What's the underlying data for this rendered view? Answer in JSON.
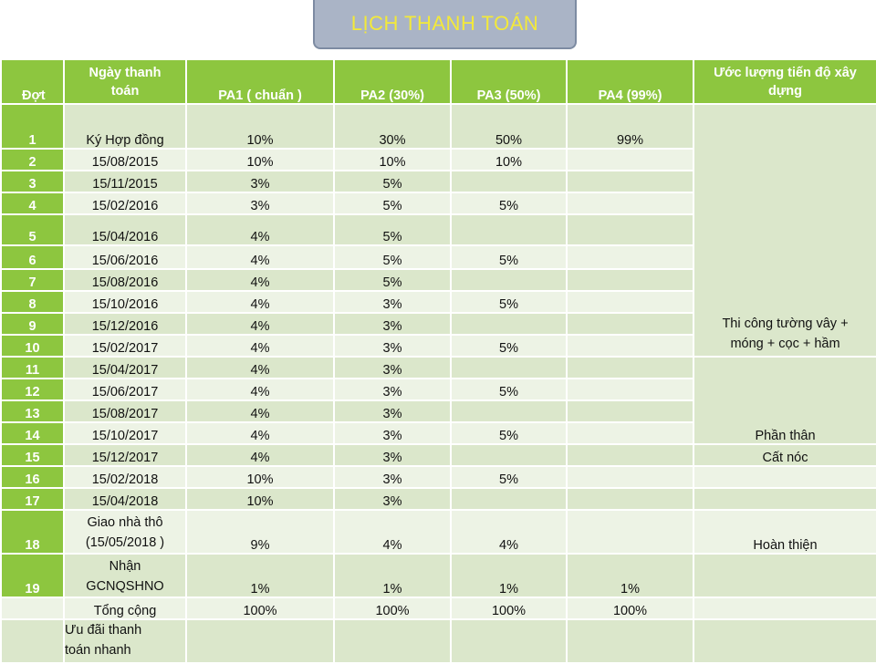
{
  "title": "LỊCH THANH TOÁN",
  "columns": {
    "dot": "Đợt",
    "date_line1": "Ngày thanh",
    "date_line2": "toán",
    "pa1": "PA1 ( chuẩn )",
    "pa2": "PA2 (30%)",
    "pa3": "PA3 (50%)",
    "pa4": "PA4 (99%)",
    "est_line1": "Ước lượng tiến độ xây",
    "est_line2": "dựng"
  },
  "rows": [
    {
      "dot": "1",
      "date": "Ký Hợp đồng",
      "pa1": "10%",
      "pa2": "30%",
      "pa3": "50%",
      "pa4": "99%"
    },
    {
      "dot": "2",
      "date": "15/08/2015",
      "pa1": "10%",
      "pa2": "10%",
      "pa3": "10%",
      "pa4": ""
    },
    {
      "dot": "3",
      "date": "15/11/2015",
      "pa1": "3%",
      "pa2": "5%",
      "pa3": "",
      "pa4": ""
    },
    {
      "dot": "4",
      "date": "15/02/2016",
      "pa1": "3%",
      "pa2": "5%",
      "pa3": "5%",
      "pa4": ""
    },
    {
      "dot": "5",
      "date": "15/04/2016",
      "pa1": "4%",
      "pa2": "5%",
      "pa3": "",
      "pa4": ""
    },
    {
      "dot": "6",
      "date": "15/06/2016",
      "pa1": "4%",
      "pa2": "5%",
      "pa3": "5%",
      "pa4": ""
    },
    {
      "dot": "7",
      "date": "15/08/2016",
      "pa1": "4%",
      "pa2": "5%",
      "pa3": "",
      "pa4": ""
    },
    {
      "dot": "8",
      "date": "15/10/2016",
      "pa1": "4%",
      "pa2": "3%",
      "pa3": "5%",
      "pa4": ""
    },
    {
      "dot": "9",
      "date": "15/12/2016",
      "pa1": "4%",
      "pa2": "3%",
      "pa3": "",
      "pa4": ""
    },
    {
      "dot": "10",
      "date": "15/02/2017",
      "pa1": "4%",
      "pa2": "3%",
      "pa3": "5%",
      "pa4": ""
    },
    {
      "dot": "11",
      "date": "15/04/2017",
      "pa1": "4%",
      "pa2": "3%",
      "pa3": "",
      "pa4": ""
    },
    {
      "dot": "12",
      "date": "15/06/2017",
      "pa1": "4%",
      "pa2": "3%",
      "pa3": "5%",
      "pa4": ""
    },
    {
      "dot": "13",
      "date": "15/08/2017",
      "pa1": "4%",
      "pa2": "3%",
      "pa3": "",
      "pa4": ""
    },
    {
      "dot": "14",
      "date": "15/10/2017",
      "pa1": "4%",
      "pa2": "3%",
      "pa3": "5%",
      "pa4": ""
    },
    {
      "dot": "15",
      "date": "15/12/2017",
      "pa1": "4%",
      "pa2": "3%",
      "pa3": "",
      "pa4": ""
    },
    {
      "dot": "16",
      "date": "15/02/2018",
      "pa1": "10%",
      "pa2": "3%",
      "pa3": "5%",
      "pa4": ""
    },
    {
      "dot": "17",
      "date": "15/04/2018",
      "pa1": "10%",
      "pa2": "3%",
      "pa3": "",
      "pa4": ""
    },
    {
      "dot": "18",
      "date_line1": "Giao nhà thô",
      "date_line2": "(15/05/2018 )",
      "pa1": "9%",
      "pa2": "4%",
      "pa3": "4%",
      "pa4": ""
    },
    {
      "dot": "19",
      "date_line1": "Nhận",
      "date_line2": "GCNQSHNO",
      "pa1": "1%",
      "pa2": "1%",
      "pa3": "1%",
      "pa4": "1%"
    }
  ],
  "estimates": {
    "phase1_line1": "Thi công tường vây +",
    "phase1_line2": "móng + cọc + hầm",
    "phase2": "Phần thân",
    "phase3": "Cất nóc",
    "phase4": "Hoàn thiện"
  },
  "total": {
    "label": "Tổng cộng",
    "pa1": "100%",
    "pa2": "100%",
    "pa3": "100%",
    "pa4": "100%"
  },
  "incentive": {
    "line1": "Ưu đãi thanh",
    "line2": "toán nhanh"
  }
}
